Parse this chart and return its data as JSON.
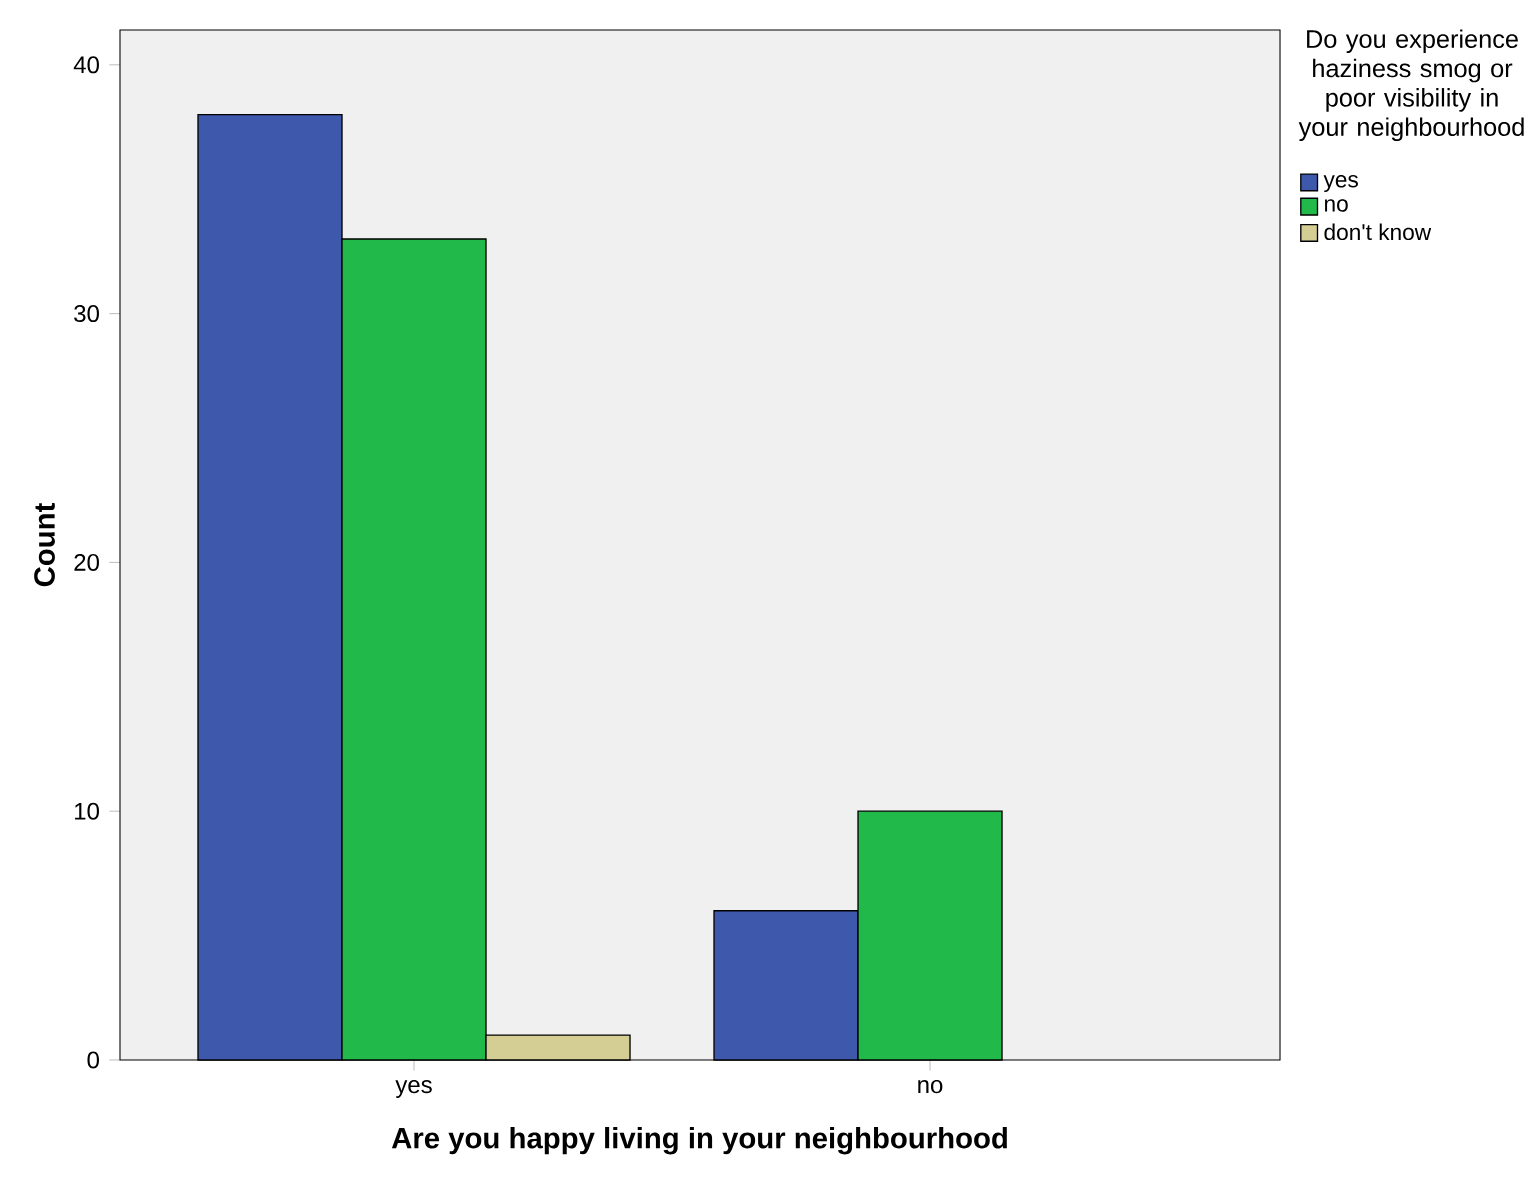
{
  "chart_data": {
    "type": "bar",
    "xlabel": "Are you happy living in your neighbourhood",
    "ylabel": "Count",
    "legend_title": "Do you experience haziness smog or poor visibility in your neighbourhood",
    "categories": [
      "yes",
      "no"
    ],
    "series": [
      {
        "name": "yes",
        "color": "#3e58ac",
        "values": [
          38,
          6
        ]
      },
      {
        "name": "no",
        "color": "#21b94a",
        "values": [
          33,
          10
        ]
      },
      {
        "name": "don't know",
        "color": "#d4ce95",
        "values": [
          1,
          null
        ]
      }
    ],
    "ylim": [
      0,
      41.4
    ],
    "yticks": [
      0,
      10,
      20,
      30,
      40
    ],
    "grid": false,
    "legend": "top right"
  }
}
